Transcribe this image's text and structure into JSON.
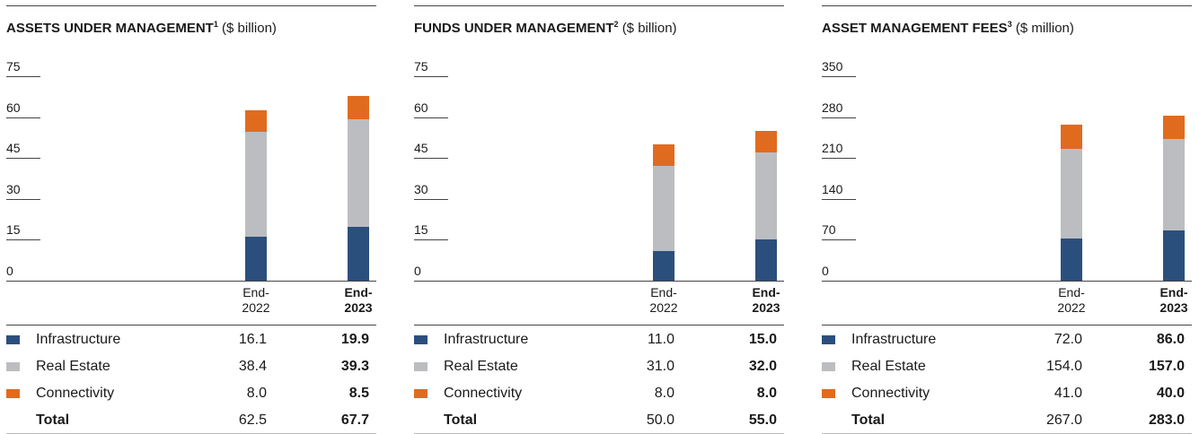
{
  "chart_data": [
    {
      "type": "bar",
      "stacked": true,
      "title": "ASSETS UNDER MANAGEMENT",
      "footnote": "1",
      "unit": "($ billion)",
      "categories": [
        "End-2022",
        "End-2023"
      ],
      "ylim": [
        0,
        75
      ],
      "yticks": [
        0,
        15,
        30,
        45,
        60,
        75
      ],
      "series": [
        {
          "name": "Infrastructure",
          "color": "#2b4f7c",
          "values": [
            16.1,
            19.9
          ]
        },
        {
          "name": "Real Estate",
          "color": "#bcbdc0",
          "values": [
            38.4,
            39.3
          ]
        },
        {
          "name": "Connectivity",
          "color": "#e06b1f",
          "values": [
            8.0,
            8.5
          ],
          "value_labels": [
            "8.0",
            "8.5"
          ]
        }
      ],
      "totals": {
        "name": "Total",
        "values": [
          62.5,
          67.7
        ]
      }
    },
    {
      "type": "bar",
      "stacked": true,
      "title": "FUNDS UNDER MANAGEMENT",
      "footnote": "2",
      "unit": "($ billion)",
      "categories": [
        "End-2022",
        "End-2023"
      ],
      "ylim": [
        0,
        75
      ],
      "yticks": [
        0,
        15,
        30,
        45,
        60,
        75
      ],
      "series": [
        {
          "name": "Infrastructure",
          "color": "#2b4f7c",
          "values": [
            11.0,
            15.0
          ],
          "value_labels": [
            "11.0",
            "15.0"
          ]
        },
        {
          "name": "Real Estate",
          "color": "#bcbdc0",
          "values": [
            31.0,
            32.0
          ],
          "value_labels": [
            "31.0",
            "32.0"
          ]
        },
        {
          "name": "Connectivity",
          "color": "#e06b1f",
          "values": [
            8.0,
            8.0
          ],
          "value_labels": [
            "8.0",
            "8.0"
          ]
        }
      ],
      "totals": {
        "name": "Total",
        "values": [
          50.0,
          55.0
        ],
        "value_labels": [
          "50.0",
          "55.0"
        ]
      }
    },
    {
      "type": "bar",
      "stacked": true,
      "title": "ASSET MANAGEMENT FEES",
      "footnote": "3",
      "unit": "($ million)",
      "categories": [
        "End-2022",
        "End-2023"
      ],
      "ylim": [
        0,
        350
      ],
      "yticks": [
        0,
        70,
        140,
        210,
        280,
        350
      ],
      "series": [
        {
          "name": "Infrastructure",
          "color": "#2b4f7c",
          "values": [
            72.0,
            86.0
          ],
          "value_labels": [
            "72.0",
            "86.0"
          ]
        },
        {
          "name": "Real Estate",
          "color": "#bcbdc0",
          "values": [
            154.0,
            157.0
          ],
          "value_labels": [
            "154.0",
            "157.0"
          ]
        },
        {
          "name": "Connectivity",
          "color": "#e06b1f",
          "values": [
            41.0,
            40.0
          ],
          "value_labels": [
            "41.0",
            "40.0"
          ]
        }
      ],
      "totals": {
        "name": "Total",
        "values": [
          267.0,
          283.0
        ],
        "value_labels": [
          "267.0",
          "283.0"
        ]
      }
    }
  ]
}
